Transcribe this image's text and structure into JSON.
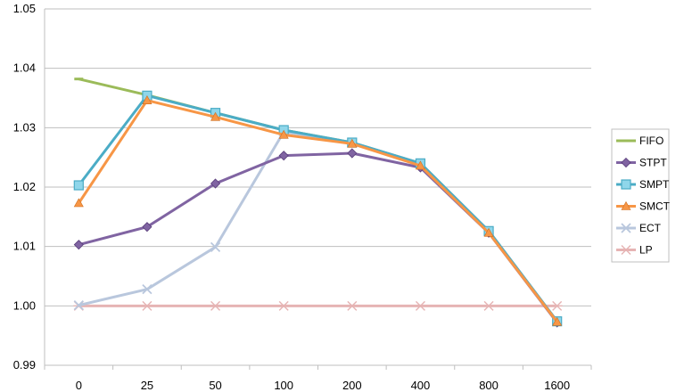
{
  "chart_data": {
    "type": "line",
    "title": "",
    "xlabel": "",
    "ylabel": "",
    "categories": [
      "0",
      "25",
      "50",
      "100",
      "200",
      "400",
      "800",
      "1600"
    ],
    "ylim": [
      0.99,
      1.05
    ],
    "yticks": [
      "0.99",
      "1.00",
      "1.01",
      "1.02",
      "1.03",
      "1.04",
      "1.05"
    ],
    "grid": "horizontal",
    "legend_position": "right",
    "series": [
      {
        "name": "FIFO",
        "color": "#9BBB59",
        "marker": "dash",
        "values": [
          1.0382,
          1.0355,
          1.0325,
          1.0296,
          1.0275,
          1.024,
          1.0126,
          0.9974
        ]
      },
      {
        "name": "STPT",
        "color": "#8064A2",
        "marker": "diamond",
        "values": [
          1.0103,
          1.0133,
          1.0206,
          1.0253,
          1.0257,
          1.0233,
          1.0123,
          0.9972
        ]
      },
      {
        "name": "SMPT",
        "color": "#4BACC6",
        "marker": "square",
        "values": [
          1.0203,
          1.0354,
          1.0325,
          1.0296,
          1.0275,
          1.024,
          1.0126,
          0.9974
        ]
      },
      {
        "name": "SMCT",
        "color": "#F79646",
        "marker": "triangle",
        "values": [
          1.0173,
          1.0346,
          1.0318,
          1.0288,
          1.0273,
          1.0236,
          1.0123,
          0.9973
        ]
      },
      {
        "name": "ECT",
        "color": "#B9C7DD",
        "marker": "x",
        "values": [
          1.0001,
          1.0028,
          1.0099,
          1.0293,
          1.0275,
          1.024,
          1.0126,
          0.9974
        ]
      },
      {
        "name": "LP",
        "color": "#E6B4B4",
        "marker": "asterisk",
        "values": [
          1.0,
          1.0,
          1.0,
          1.0,
          1.0,
          1.0,
          1.0,
          1.0
        ]
      }
    ]
  }
}
